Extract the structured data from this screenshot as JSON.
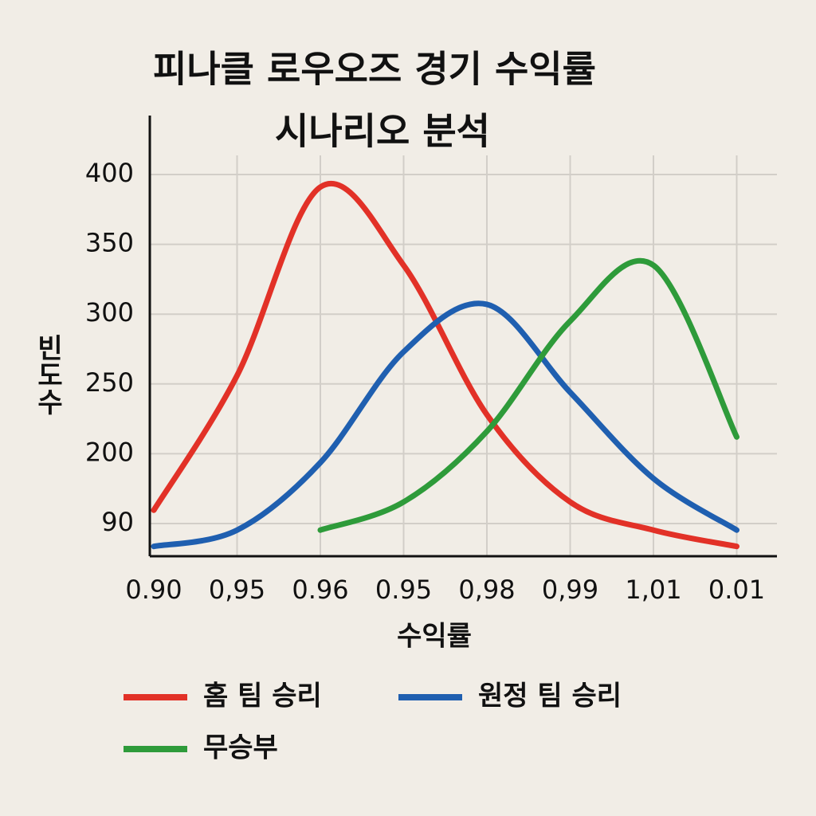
{
  "chart_data": {
    "type": "line",
    "title": "피나클 로우오즈 경기 수익률",
    "subtitle": "시나리오 분석",
    "x_label": "수익률",
    "y_label": "빈도수",
    "categories": [
      "0.90",
      "0,95",
      "0.96",
      "0.95",
      "0,98",
      "0,99",
      "1,01",
      "0.01"
    ],
    "series": [
      {
        "name": "홈 팀 승리",
        "color": "#e23127",
        "values": [
          111,
          256,
          391,
          335,
          228,
          124,
          80,
          55
        ]
      },
      {
        "name": "원정 팀 승리",
        "color": "#1f5fb0",
        "values": [
          55,
          80,
          186,
          273,
          307,
          244,
          161,
          80
        ]
      },
      {
        "name": "무승부",
        "color": "#2e9b3a",
        "values": [
          null,
          null,
          80,
          124,
          216,
          295,
          335,
          212
        ]
      }
    ],
    "ylim": [
      40,
      440
    ],
    "yticks": [
      90,
      200,
      250,
      300,
      350,
      400
    ],
    "grid": true
  }
}
